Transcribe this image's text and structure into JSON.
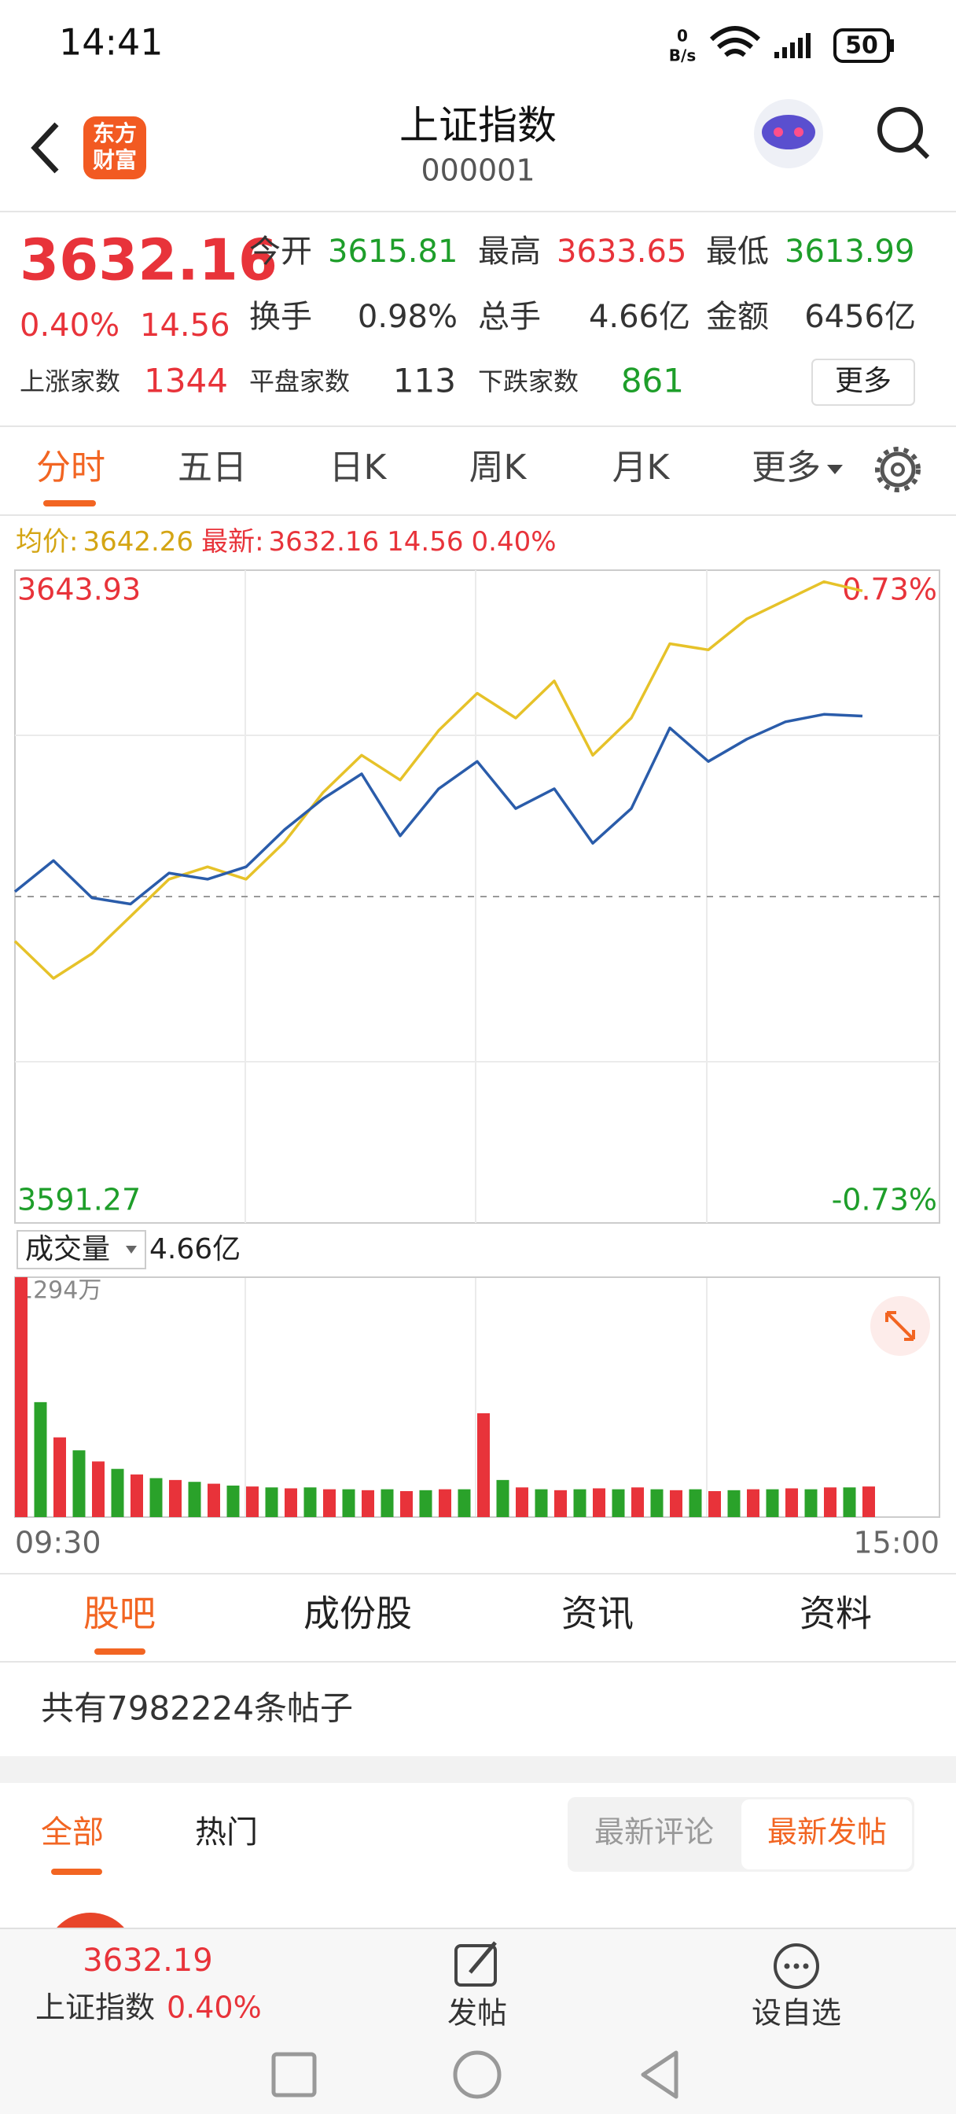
{
  "status_bar": {
    "time": "14:41",
    "net_speed": "0",
    "net_unit": "B/s",
    "battery": "50"
  },
  "header": {
    "logo_lines": [
      "东方",
      "财富"
    ],
    "title": "上证指数",
    "code": "000001"
  },
  "quote": {
    "price": "3632.16",
    "change_pct": "0.40%",
    "change": "14.56",
    "color": "#e8333a",
    "stats": [
      {
        "label": "今开",
        "value": "3615.81",
        "color": "#1e9e2a"
      },
      {
        "label": "最高",
        "value": "3633.65",
        "color": "#e8333a"
      },
      {
        "label": "最低",
        "value": "3613.99",
        "color": "#1e9e2a"
      },
      {
        "label": "换手",
        "value": "0.98%",
        "color": "#333333"
      },
      {
        "label": "总手",
        "value": "4.66亿",
        "color": "#333333"
      },
      {
        "label": "金额",
        "value": "6456亿",
        "color": "#333333"
      }
    ],
    "breadth": [
      {
        "label": "上涨家数",
        "value": "1344",
        "color": "#e8333a"
      },
      {
        "label": "平盘家数",
        "value": "113",
        "color": "#333333"
      },
      {
        "label": "下跌家数",
        "value": "861",
        "color": "#1e9e2a"
      }
    ],
    "more": "更多"
  },
  "period_tabs": [
    "分时",
    "五日",
    "日K",
    "周K",
    "月K",
    "更多"
  ],
  "chart_legend": {
    "avg_label": "均价:",
    "avg": "3642.26",
    "latest_label": "最新:",
    "latest": "3632.16",
    "latest_change": "14.56",
    "latest_pct": "0.40%"
  },
  "chart_data": [
    {
      "type": "line",
      "xlim": [
        0,
        240
      ],
      "xticks": [
        {
          "value": 0,
          "label": "09:30"
        },
        {
          "value": 240,
          "label": "15:00"
        }
      ],
      "ylim": [
        3591.27,
        3643.93
      ],
      "yticks": [
        3643.93,
        3591.27
      ],
      "y2lim": [
        -0.73,
        0.73
      ],
      "y2ticks": [
        {
          "value": 0.73,
          "label": "0.73%"
        },
        {
          "value": -0.73,
          "label": "-0.73%"
        }
      ],
      "x": [
        0,
        10,
        20,
        30,
        40,
        50,
        60,
        70,
        80,
        90,
        100,
        110,
        120,
        130,
        140,
        150,
        160,
        170,
        180,
        190,
        200,
        210,
        220
      ],
      "series": [
        {
          "name": "price",
          "color": "#2a5caa",
          "values": [
            3618,
            3620.5,
            3617.5,
            3617,
            3619.5,
            3619,
            3620,
            3623,
            3625.5,
            3627.5,
            3622.5,
            3626.3,
            3628.5,
            3624.7,
            3626.3,
            3621.9,
            3624.7,
            3631.2,
            3628.5,
            3630.3,
            3631.7,
            3632.3,
            3632.16
          ]
        },
        {
          "name": "avg",
          "color": "#e6c229",
          "values": [
            3614,
            3611,
            3613,
            3616,
            3619,
            3620,
            3619,
            3622,
            3626,
            3629,
            3627,
            3631,
            3634,
            3632,
            3635,
            3629,
            3632,
            3638,
            3637.5,
            3640,
            3641.5,
            3643,
            3642.26
          ]
        }
      ]
    },
    {
      "type": "bar",
      "selector": "成交量",
      "total": "4.66亿",
      "xlim": [
        0,
        240
      ],
      "ylim": [
        0,
        1294
      ],
      "yticks": [
        {
          "value": 1294,
          "label": "1294万"
        }
      ],
      "colors": [
        "#e8333a",
        "#2aa22a"
      ],
      "x": [
        0,
        5,
        10,
        15,
        20,
        25,
        30,
        35,
        40,
        45,
        50,
        55,
        60,
        65,
        70,
        75,
        80,
        85,
        90,
        95,
        100,
        105,
        110,
        115,
        120,
        125,
        130,
        135,
        140,
        145,
        150,
        155,
        160,
        165,
        170,
        175,
        180,
        185,
        190,
        195,
        200,
        205,
        210,
        215,
        220
      ],
      "values": [
        1294,
        620,
        430,
        360,
        300,
        260,
        230,
        210,
        200,
        190,
        180,
        170,
        165,
        160,
        155,
        160,
        150,
        150,
        145,
        150,
        140,
        145,
        150,
        150,
        560,
        200,
        160,
        150,
        145,
        150,
        155,
        150,
        160,
        150,
        145,
        150,
        140,
        145,
        150,
        150,
        155,
        150,
        160,
        160,
        165
      ]
    }
  ],
  "section_tabs": [
    "股吧",
    "成份股",
    "资讯",
    "资料"
  ],
  "post_count": "共有7982224条帖子",
  "filter_tabs": [
    "全部",
    "热门"
  ],
  "sort_tabs": [
    "最新评论",
    "最新发帖"
  ],
  "bottom_bar": {
    "price": "3632.19",
    "name": "上证指数",
    "pct": "0.40%",
    "actions": [
      "发帖",
      "设自选"
    ]
  }
}
